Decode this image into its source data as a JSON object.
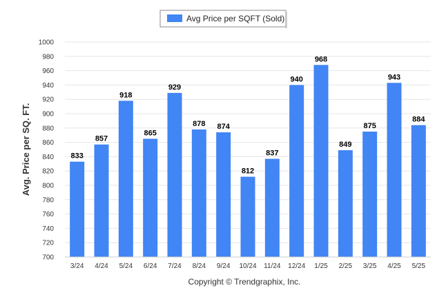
{
  "colors": {
    "bar": "#4285f4",
    "grid": "#e6e6e6",
    "axis": "#cccccc"
  },
  "footer": {
    "text": "Copyright © Trendgraphix, Inc."
  },
  "chart_data": {
    "type": "bar",
    "title": "",
    "xlabel": "",
    "ylabel": "Avg. Price per SQ. FT.",
    "ylim": [
      700,
      1000
    ],
    "ytick_step": 20,
    "grid": true,
    "legend_position": "top-center",
    "categories": [
      "3/24",
      "4/24",
      "5/24",
      "6/24",
      "7/24",
      "8/24",
      "9/24",
      "10/24",
      "11/24",
      "12/24",
      "1/25",
      "2/25",
      "3/25",
      "4/25",
      "5/25"
    ],
    "series": [
      {
        "name": "Avg Price per SQFT (Sold)",
        "values": [
          833,
          857,
          918,
          865,
          929,
          878,
          874,
          812,
          837,
          940,
          968,
          849,
          875,
          943,
          884
        ]
      }
    ]
  }
}
